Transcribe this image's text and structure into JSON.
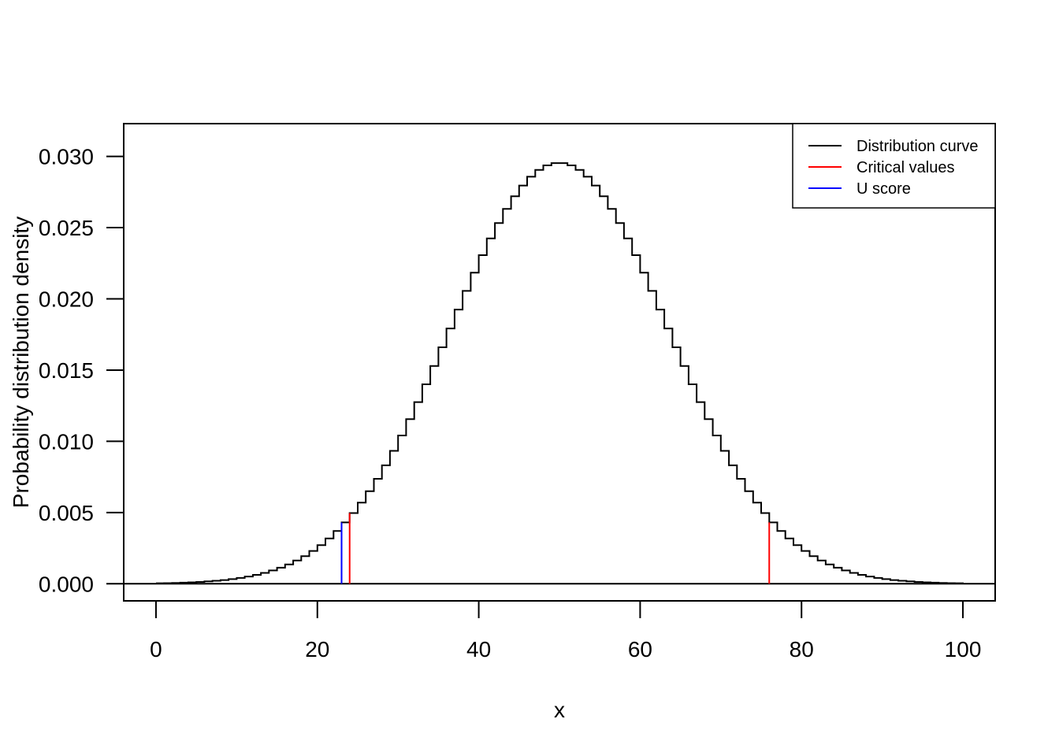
{
  "chart_data": {
    "type": "line",
    "xlabel": "x",
    "ylabel": "Probability distribution  density",
    "xlim": [
      -4,
      104
    ],
    "ylim": [
      -0.0012,
      0.0323
    ],
    "x_ticks": [
      0,
      20,
      40,
      60,
      80,
      100
    ],
    "x_tick_labels": [
      "0",
      "20",
      "40",
      "60",
      "80",
      "100"
    ],
    "y_ticks": [
      0,
      0.005,
      0.01,
      0.015,
      0.02,
      0.025,
      0.03
    ],
    "y_tick_labels": [
      "0.000",
      "0.005",
      "0.010",
      "0.015",
      "0.020",
      "0.025",
      "0.030"
    ],
    "grid": false,
    "legend_position": "top-right",
    "legend": [
      {
        "label": "Distribution curve",
        "color": "#000000"
      },
      {
        "label": "Critical values",
        "color": "#ff0000"
      },
      {
        "label": "U  score",
        "color": "#0000ff"
      }
    ],
    "distribution": {
      "step_style": "steps",
      "mean": 49.5,
      "sd": 13.5,
      "x_range": [
        0,
        100
      ]
    },
    "critical_values": [
      24,
      76
    ],
    "u_score": 23,
    "colors": {
      "curve": "#000000",
      "critical": "#ff0000",
      "score": "#0000ff"
    }
  }
}
